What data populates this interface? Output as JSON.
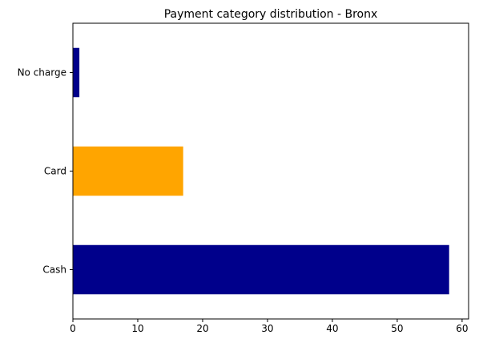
{
  "chart_data": {
    "type": "bar",
    "orientation": "horizontal",
    "title": "Payment category distribution - Bronx",
    "xlabel": "",
    "ylabel": "",
    "categories": [
      "Cash",
      "Card",
      "No charge"
    ],
    "values": [
      58,
      17,
      1
    ],
    "colors": [
      "#00008b",
      "#ffa500",
      "#00008b"
    ],
    "xlim": [
      0,
      61
    ],
    "xticks": [
      0,
      10,
      20,
      30,
      40,
      50,
      60
    ],
    "grid": false,
    "legend": "none"
  }
}
